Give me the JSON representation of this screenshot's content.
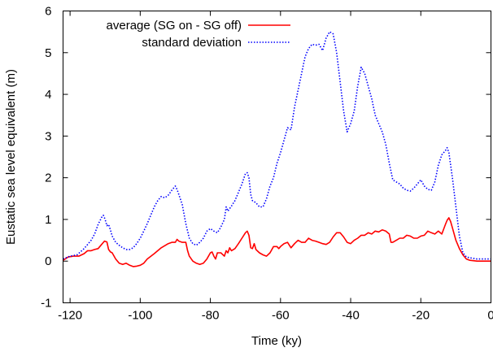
{
  "chart_data": {
    "type": "line",
    "xlabel": "Time (ky)",
    "ylabel": "Eustatic sea level equivalent (m)",
    "xlim": [
      -122,
      0
    ],
    "ylim": [
      -1,
      6
    ],
    "xticks": [
      -120,
      -100,
      -80,
      -60,
      -40,
      -20,
      0
    ],
    "yticks": [
      -1,
      0,
      1,
      2,
      3,
      4,
      5,
      6
    ],
    "grid": false,
    "legend": "top-left",
    "series": [
      {
        "name": "average (SG on - SG off)",
        "color": "#ff0000",
        "style": "solid",
        "points": [
          [
            -122,
            0.02
          ],
          [
            -120.5,
            0.1
          ],
          [
            -119,
            0.12
          ],
          [
            -117.5,
            0.12
          ],
          [
            -116,
            0.18
          ],
          [
            -115,
            0.25
          ],
          [
            -114,
            0.25
          ],
          [
            -113,
            0.28
          ],
          [
            -112,
            0.3
          ],
          [
            -111,
            0.4
          ],
          [
            -110.2,
            0.48
          ],
          [
            -109.5,
            0.46
          ],
          [
            -109,
            0.28
          ],
          [
            -108.5,
            0.22
          ],
          [
            -108,
            0.2
          ],
          [
            -107,
            0.05
          ],
          [
            -106,
            -0.05
          ],
          [
            -105,
            -0.08
          ],
          [
            -104,
            -0.05
          ],
          [
            -103,
            -0.1
          ],
          [
            -102,
            -0.13
          ],
          [
            -101,
            -0.12
          ],
          [
            -100,
            -0.1
          ],
          [
            -99,
            -0.05
          ],
          [
            -98,
            0.05
          ],
          [
            -96,
            0.18
          ],
          [
            -94,
            0.32
          ],
          [
            -92,
            0.42
          ],
          [
            -91,
            0.45
          ],
          [
            -90,
            0.45
          ],
          [
            -89.5,
            0.52
          ],
          [
            -89,
            0.48
          ],
          [
            -88,
            0.45
          ],
          [
            -87,
            0.45
          ],
          [
            -86.5,
            0.25
          ],
          [
            -86,
            0.12
          ],
          [
            -85,
            0.0
          ],
          [
            -84,
            -0.05
          ],
          [
            -83,
            -0.08
          ],
          [
            -82,
            -0.05
          ],
          [
            -81,
            0.05
          ],
          [
            -80,
            0.2
          ],
          [
            -79.5,
            0.22
          ],
          [
            -79,
            0.12
          ],
          [
            -78.5,
            0.05
          ],
          [
            -78,
            0.2
          ],
          [
            -77,
            0.2
          ],
          [
            -76,
            0.12
          ],
          [
            -75.5,
            0.25
          ],
          [
            -75,
            0.2
          ],
          [
            -74.5,
            0.32
          ],
          [
            -74,
            0.25
          ],
          [
            -73,
            0.3
          ],
          [
            -72,
            0.42
          ],
          [
            -71,
            0.55
          ],
          [
            -70,
            0.68
          ],
          [
            -69.5,
            0.72
          ],
          [
            -69,
            0.62
          ],
          [
            -68.5,
            0.32
          ],
          [
            -68,
            0.3
          ],
          [
            -67.5,
            0.42
          ],
          [
            -67,
            0.28
          ],
          [
            -66,
            0.2
          ],
          [
            -65,
            0.15
          ],
          [
            -64,
            0.12
          ],
          [
            -63,
            0.2
          ],
          [
            -62,
            0.35
          ],
          [
            -61,
            0.35
          ],
          [
            -60.5,
            0.3
          ],
          [
            -60,
            0.35
          ],
          [
            -59,
            0.42
          ],
          [
            -58,
            0.45
          ],
          [
            -57,
            0.32
          ],
          [
            -56,
            0.42
          ],
          [
            -55,
            0.5
          ],
          [
            -54,
            0.45
          ],
          [
            -53,
            0.45
          ],
          [
            -52,
            0.55
          ],
          [
            -51,
            0.5
          ],
          [
            -50,
            0.48
          ],
          [
            -49,
            0.45
          ],
          [
            -48,
            0.42
          ],
          [
            -47,
            0.4
          ],
          [
            -46,
            0.45
          ],
          [
            -45,
            0.58
          ],
          [
            -44,
            0.68
          ],
          [
            -43,
            0.68
          ],
          [
            -42,
            0.58
          ],
          [
            -41,
            0.45
          ],
          [
            -40,
            0.42
          ],
          [
            -39,
            0.5
          ],
          [
            -38,
            0.55
          ],
          [
            -37,
            0.62
          ],
          [
            -36,
            0.62
          ],
          [
            -35,
            0.68
          ],
          [
            -34,
            0.65
          ],
          [
            -33,
            0.72
          ],
          [
            -32,
            0.7
          ],
          [
            -31,
            0.75
          ],
          [
            -30,
            0.72
          ],
          [
            -29,
            0.65
          ],
          [
            -28.5,
            0.45
          ],
          [
            -28,
            0.45
          ],
          [
            -27,
            0.5
          ],
          [
            -26,
            0.55
          ],
          [
            -25,
            0.55
          ],
          [
            -24,
            0.62
          ],
          [
            -23,
            0.6
          ],
          [
            -22,
            0.55
          ],
          [
            -21,
            0.55
          ],
          [
            -20,
            0.6
          ],
          [
            -19,
            0.62
          ],
          [
            -18,
            0.72
          ],
          [
            -17,
            0.68
          ],
          [
            -16,
            0.65
          ],
          [
            -15,
            0.72
          ],
          [
            -14,
            0.65
          ],
          [
            -13,
            0.88
          ],
          [
            -12.5,
            0.98
          ],
          [
            -12,
            1.04
          ],
          [
            -11.5,
            0.95
          ],
          [
            -11,
            0.8
          ],
          [
            -10,
            0.5
          ],
          [
            -9,
            0.3
          ],
          [
            -8,
            0.15
          ],
          [
            -7,
            0.05
          ],
          [
            -6,
            0.02
          ],
          [
            -4,
            0.0
          ],
          [
            -2,
            0.0
          ],
          [
            0,
            0.0
          ]
        ]
      },
      {
        "name": "standard deviation",
        "color": "#0000ff",
        "style": "dotted",
        "points": [
          [
            -122,
            0.05
          ],
          [
            -120,
            0.12
          ],
          [
            -118,
            0.15
          ],
          [
            -116,
            0.3
          ],
          [
            -114,
            0.5
          ],
          [
            -113,
            0.65
          ],
          [
            -112,
            0.88
          ],
          [
            -111,
            1.05
          ],
          [
            -110.5,
            1.1
          ],
          [
            -110,
            1.0
          ],
          [
            -109.5,
            0.85
          ],
          [
            -109,
            0.88
          ],
          [
            -108.5,
            0.75
          ],
          [
            -108,
            0.6
          ],
          [
            -107,
            0.45
          ],
          [
            -106,
            0.38
          ],
          [
            -105,
            0.32
          ],
          [
            -104,
            0.28
          ],
          [
            -103,
            0.28
          ],
          [
            -102,
            0.32
          ],
          [
            -101,
            0.42
          ],
          [
            -100,
            0.55
          ],
          [
            -99,
            0.72
          ],
          [
            -98,
            0.9
          ],
          [
            -97,
            1.1
          ],
          [
            -96,
            1.3
          ],
          [
            -95,
            1.45
          ],
          [
            -94,
            1.55
          ],
          [
            -93,
            1.52
          ],
          [
            -92,
            1.58
          ],
          [
            -91,
            1.7
          ],
          [
            -90,
            1.8
          ],
          [
            -89.5,
            1.72
          ],
          [
            -89,
            1.6
          ],
          [
            -88,
            1.35
          ],
          [
            -87,
            0.9
          ],
          [
            -86,
            0.55
          ],
          [
            -85,
            0.42
          ],
          [
            -84,
            0.38
          ],
          [
            -83,
            0.45
          ],
          [
            -82,
            0.55
          ],
          [
            -81,
            0.72
          ],
          [
            -80,
            0.78
          ],
          [
            -79,
            0.72
          ],
          [
            -78,
            0.68
          ],
          [
            -77,
            0.82
          ],
          [
            -76,
            1.0
          ],
          [
            -75.5,
            1.3
          ],
          [
            -75,
            1.2
          ],
          [
            -74,
            1.32
          ],
          [
            -73,
            1.45
          ],
          [
            -72,
            1.65
          ],
          [
            -71,
            1.85
          ],
          [
            -70,
            2.1
          ],
          [
            -69.5,
            2.12
          ],
          [
            -69,
            2.0
          ],
          [
            -68.5,
            1.6
          ],
          [
            -68,
            1.45
          ],
          [
            -67,
            1.4
          ],
          [
            -66,
            1.3
          ],
          [
            -65,
            1.3
          ],
          [
            -64,
            1.5
          ],
          [
            -63,
            1.8
          ],
          [
            -62,
            2.0
          ],
          [
            -61,
            2.35
          ],
          [
            -60,
            2.6
          ],
          [
            -59,
            2.9
          ],
          [
            -58,
            3.2
          ],
          [
            -57,
            3.15
          ],
          [
            -56,
            3.7
          ],
          [
            -55,
            4.1
          ],
          [
            -54,
            4.5
          ],
          [
            -53,
            4.9
          ],
          [
            -52,
            5.1
          ],
          [
            -51,
            5.2
          ],
          [
            -50,
            5.18
          ],
          [
            -49,
            5.2
          ],
          [
            -48,
            5.05
          ],
          [
            -47,
            5.35
          ],
          [
            -46,
            5.5
          ],
          [
            -45,
            5.45
          ],
          [
            -44,
            5.0
          ],
          [
            -43,
            4.3
          ],
          [
            -42,
            3.6
          ],
          [
            -41,
            3.1
          ],
          [
            -40,
            3.3
          ],
          [
            -39,
            3.6
          ],
          [
            -38,
            4.2
          ],
          [
            -37,
            4.65
          ],
          [
            -36,
            4.5
          ],
          [
            -35,
            4.2
          ],
          [
            -34,
            3.9
          ],
          [
            -33,
            3.5
          ],
          [
            -32,
            3.3
          ],
          [
            -31,
            3.1
          ],
          [
            -30,
            2.8
          ],
          [
            -29,
            2.35
          ],
          [
            -28,
            1.95
          ],
          [
            -27,
            1.9
          ],
          [
            -26,
            1.85
          ],
          [
            -25,
            1.75
          ],
          [
            -24,
            1.7
          ],
          [
            -23,
            1.68
          ],
          [
            -22,
            1.75
          ],
          [
            -21,
            1.85
          ],
          [
            -20,
            1.95
          ],
          [
            -19,
            1.8
          ],
          [
            -18,
            1.72
          ],
          [
            -17,
            1.7
          ],
          [
            -16,
            1.9
          ],
          [
            -15,
            2.3
          ],
          [
            -14,
            2.55
          ],
          [
            -13,
            2.65
          ],
          [
            -12.5,
            2.72
          ],
          [
            -12,
            2.6
          ],
          [
            -11,
            2.0
          ],
          [
            -10,
            1.3
          ],
          [
            -9,
            0.6
          ],
          [
            -8,
            0.2
          ],
          [
            -7,
            0.1
          ],
          [
            -6,
            0.08
          ],
          [
            -4,
            0.05
          ],
          [
            -2,
            0.05
          ],
          [
            0,
            0.05
          ]
        ]
      }
    ]
  }
}
